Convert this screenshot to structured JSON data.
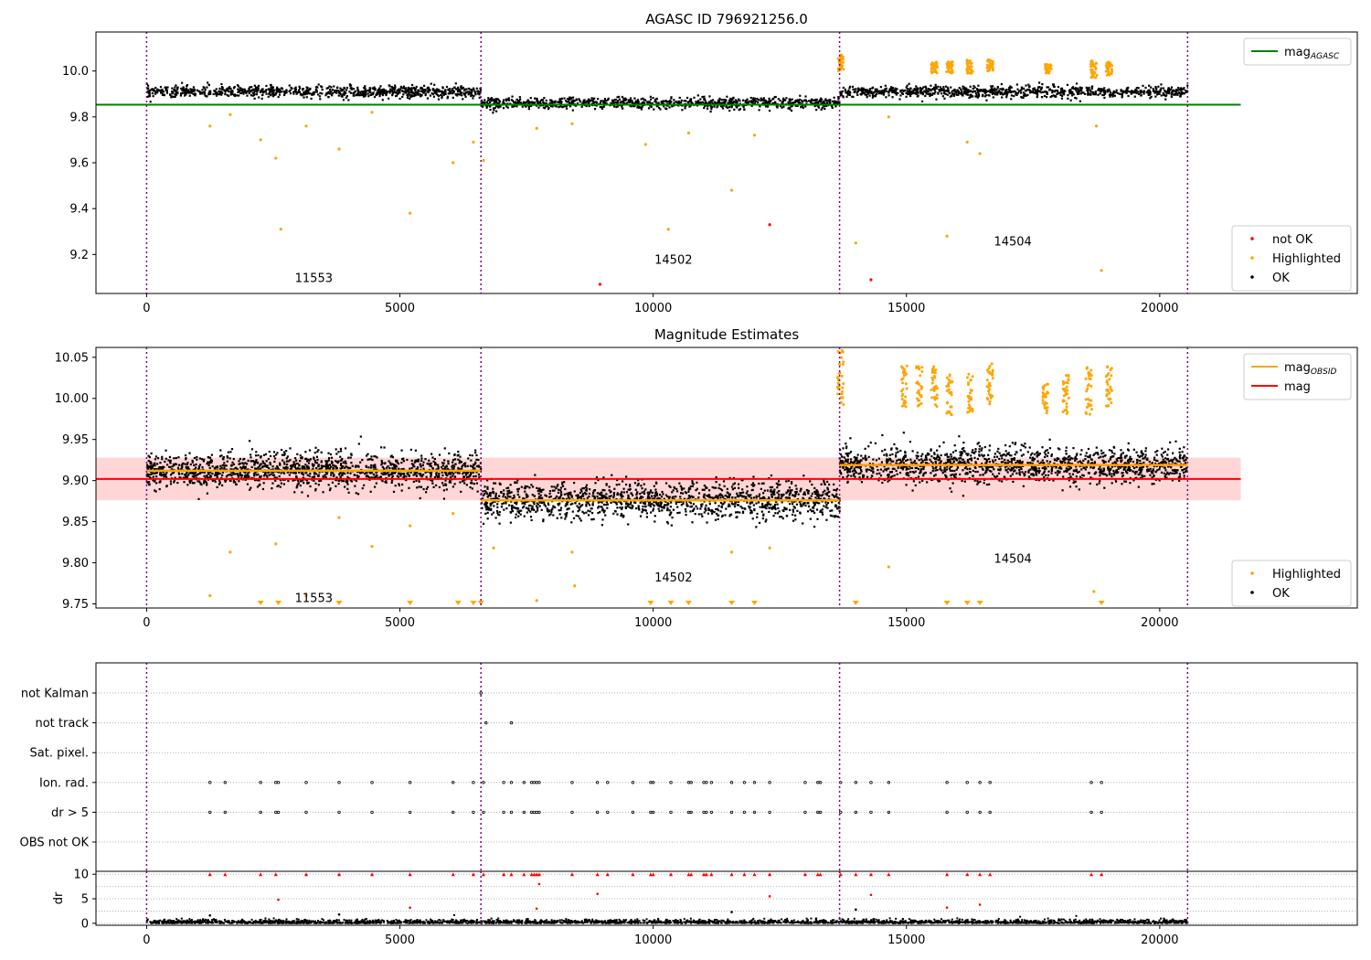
{
  "chart_data": [
    {
      "type": "scatter",
      "title": "AGASC ID 796921256.0",
      "xlabel": "",
      "ylabel": "",
      "xlim": [
        -1000,
        23900
      ],
      "ylim": [
        9.03,
        10.17
      ],
      "xticks": [
        0,
        5000,
        10000,
        15000,
        20000
      ],
      "yticks": [
        9.2,
        9.4,
        9.6,
        9.8,
        10.0
      ],
      "ytick_labels": [
        "9.2",
        "9.4",
        "9.6",
        "9.8",
        "10.0"
      ],
      "grid": false,
      "obsid_boundaries": [
        0,
        6600,
        13680,
        20550
      ],
      "obsid_labels": [
        {
          "text": "11553",
          "x": 3300,
          "y": 9.08
        },
        {
          "text": "14502",
          "x": 10400,
          "y": 9.16
        },
        {
          "text": "14504",
          "x": 17100,
          "y": 9.24
        }
      ],
      "band_noise": 0.025,
      "segments": [
        {
          "x0": 0,
          "x1": 6600,
          "level": 9.91
        },
        {
          "x0": 6600,
          "x1": 13680,
          "level": 9.86
        },
        {
          "x0": 13680,
          "x1": 20550,
          "level": 9.91
        }
      ],
      "series": [
        {
          "name": "mag_AGASC",
          "kind": "hline",
          "y": 9.853,
          "x0": -1000,
          "x1": 21600,
          "color": "#008000"
        },
        {
          "name": "not OK",
          "color": "#ff0000",
          "x": [
            8950,
            12300,
            14300
          ],
          "y": [
            9.07,
            9.33,
            9.09
          ]
        },
        {
          "name": "Highlighted",
          "color": "#ffa500",
          "x": [
            1250,
            1650,
            2250,
            2550,
            2650,
            3150,
            3800,
            4450,
            5200,
            6050,
            6450,
            6650,
            7700,
            8400,
            9850,
            10300,
            10700,
            11550,
            12000,
            13700,
            14000,
            14650,
            15800,
            16200,
            16450,
            18750,
            18850
          ],
          "y": [
            9.76,
            9.81,
            9.7,
            9.62,
            9.31,
            9.76,
            9.66,
            9.82,
            9.38,
            9.6,
            9.69,
            9.61,
            9.75,
            9.77,
            9.68,
            9.31,
            9.73,
            9.48,
            9.72,
            10.05,
            9.25,
            9.8,
            9.28,
            9.69,
            9.64,
            9.76,
            9.13
          ]
        },
        {
          "name": "OK",
          "color": "#000000"
        }
      ],
      "highlight_clusters": [
        {
          "x": 13700,
          "y0": 10.0,
          "y1": 10.07
        },
        {
          "x": 15550,
          "y0": 9.99,
          "y1": 10.04
        },
        {
          "x": 15850,
          "y0": 9.99,
          "y1": 10.04
        },
        {
          "x": 16250,
          "y0": 9.99,
          "y1": 10.05
        },
        {
          "x": 16650,
          "y0": 10.0,
          "y1": 10.05
        },
        {
          "x": 17800,
          "y0": 9.99,
          "y1": 10.03
        },
        {
          "x": 18700,
          "y0": 9.97,
          "y1": 10.05
        },
        {
          "x": 19000,
          "y0": 9.98,
          "y1": 10.04
        }
      ],
      "legends": [
        {
          "position": "top-right",
          "entries": [
            {
              "label": "mag",
              "sub": "AGASC",
              "kind": "line",
              "color": "#008000"
            }
          ]
        },
        {
          "position": "lower-right",
          "entries": [
            {
              "label": "not OK",
              "kind": "dot",
              "color": "#ff0000"
            },
            {
              "label": "Highlighted",
              "kind": "dot",
              "color": "#ffa500"
            },
            {
              "label": "OK",
              "kind": "dot",
              "color": "#000000"
            }
          ]
        }
      ]
    },
    {
      "type": "scatter",
      "title": "Magnitude Estimates",
      "xlabel": "",
      "ylabel": "",
      "xlim": [
        -1000,
        23900
      ],
      "ylim": [
        9.745,
        10.062
      ],
      "xticks": [
        0,
        5000,
        10000,
        15000,
        20000
      ],
      "yticks": [
        9.75,
        9.8,
        9.85,
        9.9,
        9.95,
        10.0,
        10.05
      ],
      "ytick_labels": [
        "9.75",
        "9.80",
        "9.85",
        "9.90",
        "9.95",
        "10.00",
        "10.05"
      ],
      "grid": false,
      "obsid_boundaries": [
        0,
        6600,
        13680,
        20550
      ],
      "obsid_labels": [
        {
          "text": "11553",
          "x": 3300,
          "y": 9.752
        },
        {
          "text": "14502",
          "x": 10400,
          "y": 9.777
        },
        {
          "text": "14504",
          "x": 17100,
          "y": 9.8
        }
      ],
      "mag": 9.902,
      "mag_band": [
        9.876,
        9.928
      ],
      "band_noise": 0.022,
      "segments": [
        {
          "x0": 0,
          "x1": 6600,
          "level": 9.912
        },
        {
          "x0": 6600,
          "x1": 13680,
          "level": 9.876
        },
        {
          "x0": 13680,
          "x1": 20550,
          "level": 9.919
        }
      ],
      "series": [
        {
          "name": "mag_OBSID",
          "kind": "step",
          "color": "#ffa500"
        },
        {
          "name": "mag",
          "kind": "hline",
          "y": 9.902,
          "x0": -1000,
          "x1": 21600,
          "color": "#ff0000"
        },
        {
          "name": "Highlighted",
          "color": "#ffa500",
          "x": [
            1250,
            1650,
            2550,
            3150,
            3800,
            4450,
            5200,
            6050,
            6850,
            7700,
            8400,
            8450,
            11550,
            12300,
            14650,
            18700
          ],
          "y": [
            9.76,
            9.813,
            9.823,
            9.76,
            9.855,
            9.82,
            9.845,
            9.86,
            9.818,
            9.754,
            9.813,
            9.772,
            9.813,
            9.818,
            9.795,
            9.765
          ]
        },
        {
          "name": "OK",
          "color": "#000000"
        }
      ],
      "offscale_below_x": [
        2250,
        2600,
        3800,
        5200,
        6150,
        6450,
        6600,
        9950,
        10350,
        10700,
        11550,
        12000,
        14000,
        15800,
        16200,
        16450,
        18850
      ],
      "highlight_clusters": [
        {
          "x": 13700,
          "y0": 9.99,
          "y1": 10.06
        },
        {
          "x": 14950,
          "y0": 9.99,
          "y1": 10.04
        },
        {
          "x": 15250,
          "y0": 9.99,
          "y1": 10.04
        },
        {
          "x": 15550,
          "y0": 9.99,
          "y1": 10.04
        },
        {
          "x": 15850,
          "y0": 9.98,
          "y1": 10.03
        },
        {
          "x": 16250,
          "y0": 9.98,
          "y1": 10.03
        },
        {
          "x": 16650,
          "y0": 9.99,
          "y1": 10.05
        },
        {
          "x": 17750,
          "y0": 9.98,
          "y1": 10.02
        },
        {
          "x": 18150,
          "y0": 9.98,
          "y1": 10.03
        },
        {
          "x": 18600,
          "y0": 9.98,
          "y1": 10.04
        },
        {
          "x": 19000,
          "y0": 9.99,
          "y1": 10.04
        }
      ],
      "legends": [
        {
          "position": "top-right",
          "entries": [
            {
              "label": "mag",
              "sub": "OBSID",
              "kind": "line",
              "color": "#ffa500"
            },
            {
              "label": "mag",
              "kind": "line",
              "color": "#ff0000"
            }
          ]
        },
        {
          "position": "lower-right",
          "entries": [
            {
              "label": "Highlighted",
              "kind": "dot",
              "color": "#ffa500"
            },
            {
              "label": "OK",
              "kind": "dot",
              "color": "#000000"
            }
          ]
        }
      ]
    },
    {
      "type": "scatter",
      "title": "",
      "xlabel": "",
      "ylabel": "",
      "xlim": [
        -1000,
        23900
      ],
      "grid": true,
      "obsid_boundaries": [
        0,
        6600,
        13680,
        20550
      ],
      "flag_rows": [
        "not Kalman",
        "not track",
        "Sat. pixel.",
        "Ion. rad.",
        "dr > 5",
        "OBS not OK"
      ],
      "flags": {
        "not Kalman": [
          6600
        ],
        "not track": [
          6700,
          7200
        ],
        "Sat. pixel.": [],
        "Ion. rad.": [
          1250,
          1550,
          2250,
          2550,
          2600,
          3150,
          3800,
          4450,
          5200,
          6050,
          6450,
          6650,
          7050,
          7200,
          7450,
          7600,
          7650,
          7700,
          7750,
          8400,
          8900,
          9100,
          9600,
          9950,
          10000,
          10350,
          10700,
          10750,
          11000,
          11050,
          11150,
          11550,
          11800,
          12000,
          12300,
          13000,
          13250,
          13300,
          13700,
          14000,
          14300,
          14650,
          15800,
          16200,
          16450,
          16650,
          18650,
          18850
        ],
        "dr > 5": [
          1250,
          1550,
          2250,
          2550,
          2600,
          3150,
          3800,
          4450,
          5200,
          6050,
          6450,
          6650,
          7050,
          7200,
          7450,
          7600,
          7650,
          7700,
          7750,
          8400,
          8900,
          9100,
          9600,
          9950,
          10000,
          10350,
          10700,
          10750,
          11000,
          11050,
          11150,
          11550,
          11800,
          12000,
          12300,
          13000,
          13250,
          13300,
          13700,
          14000,
          14300,
          14650,
          15800,
          16200,
          16450,
          16650,
          18650,
          18850
        ],
        "OBS not OK": []
      }
    },
    {
      "type": "scatter",
      "title": "",
      "xlabel": "",
      "ylabel": "dr",
      "xlim": [
        -1000,
        23900
      ],
      "ylim": [
        -0.4,
        10.6
      ],
      "xticks": [
        0,
        5000,
        10000,
        15000,
        20000
      ],
      "yticks": [
        0,
        5,
        10
      ],
      "ytick_labels": [
        "0",
        "5",
        "10"
      ],
      "grid": true,
      "obsid_boundaries": [
        0,
        6600,
        13680,
        20550
      ],
      "dr_clipped": 10,
      "series": [
        {
          "name": "dr OK",
          "color": "#000000"
        },
        {
          "name": "dr large",
          "color": "#ff0000",
          "x": [
            2600,
            5200,
            7700,
            7750,
            8900,
            12300,
            14300,
            15800,
            16450
          ],
          "y": [
            4.8,
            3.2,
            3.0,
            8.0,
            6.0,
            5.5,
            5.8,
            3.2,
            3.8
          ]
        },
        {
          "name": "dr outliers",
          "color": "#000000",
          "x": [
            1250,
            3800,
            11550,
            14000
          ],
          "y": [
            1.6,
            1.8,
            2.3,
            2.8
          ]
        }
      ],
      "clipped_x": [
        1250,
        1550,
        2250,
        2550,
        3150,
        3800,
        4450,
        5200,
        6050,
        6450,
        6650,
        7050,
        7200,
        7450,
        7600,
        7650,
        7700,
        7750,
        8400,
        8900,
        9100,
        9600,
        9950,
        10000,
        10350,
        10700,
        10750,
        11000,
        11050,
        11150,
        11550,
        11800,
        12000,
        12300,
        13000,
        13250,
        13300,
        13700,
        14000,
        14300,
        14650,
        15800,
        16200,
        16450,
        16650,
        18650,
        18850
      ]
    }
  ],
  "colors": {
    "boundary": "#800080",
    "ok": "#000000",
    "highlighted": "#ffa500",
    "not_ok": "#ff0000",
    "agasc": "#008000",
    "obsid_mag": "#ffa500",
    "mag": "#ff0000",
    "band": "#ffcccc"
  }
}
